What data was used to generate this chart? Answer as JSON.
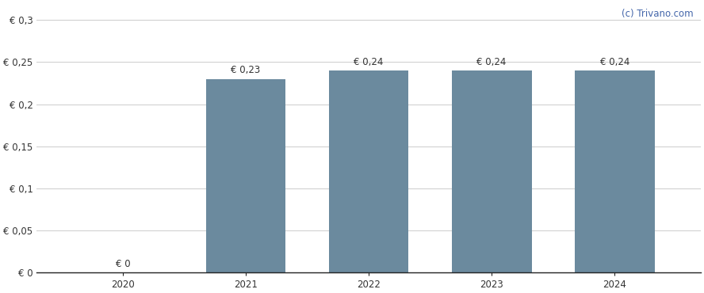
{
  "categories": [
    2020,
    2021,
    2022,
    2023,
    2024
  ],
  "values": [
    0.0,
    0.23,
    0.24,
    0.24,
    0.24
  ],
  "labels": [
    "€ 0",
    "€ 0,23",
    "€ 0,24",
    "€ 0,24",
    "€ 0,24"
  ],
  "bar_color": "#6b8a9e",
  "background_color": "#ffffff",
  "ylim": [
    0,
    0.32
  ],
  "yticks": [
    0,
    0.05,
    0.1,
    0.15,
    0.2,
    0.25,
    0.3
  ],
  "ytick_labels": [
    "€ 0",
    "€ 0,05",
    "€ 0,1",
    "€ 0,15",
    "€ 0,2",
    "€ 0,25",
    "€ 0,3"
  ],
  "watermark": "(c) Trivano.com",
  "watermark_color": "#4466aa",
  "grid_color": "#cccccc",
  "label_fontsize": 8.5,
  "tick_fontsize": 8.5,
  "watermark_fontsize": 8.5,
  "bar_width": 0.65
}
